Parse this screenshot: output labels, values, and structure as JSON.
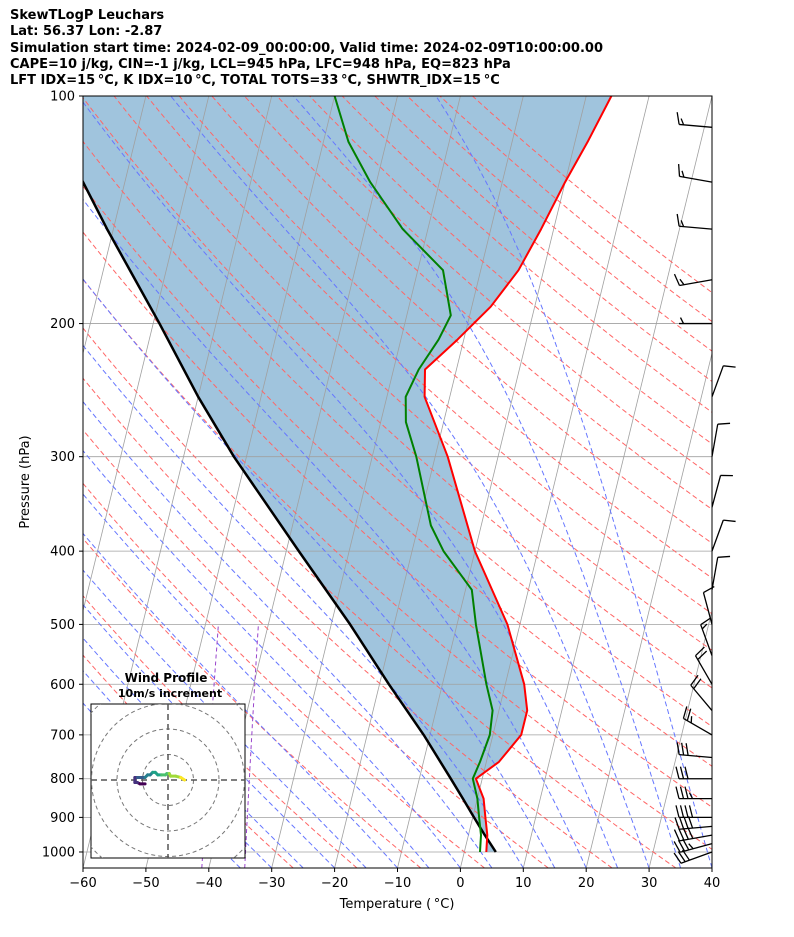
{
  "header": {
    "line1": "SkewTLogP Leuchars",
    "line2": "Lat: 56.37   Lon: -2.87",
    "line3": "Simulation start time: 2024-02-09_00:00:00, Valid time: 2024-02-09T10:00:00.00",
    "line4": "CAPE=10 j/kg, CIN=-1 j/kg, LCL=945 hPa, LFC=948 hPa, EQ=823 hPa",
    "line5": "LFT IDX=15 °C, K IDX=10 °C, TOTAL TOTS=33 °C, SHWTR_IDX=15 °C"
  },
  "chart_data": {
    "type": "line",
    "xlabel": "Temperature ( °C)",
    "ylabel": "Pressure (hPa)",
    "xlim": [
      -60,
      40
    ],
    "ylim": [
      1050,
      100
    ],
    "y_scale": "log",
    "x_ticks": [
      "−60",
      "−50",
      "−40",
      "−30",
      "−20",
      "−10",
      "0",
      "10",
      "20",
      "30",
      "40"
    ],
    "y_ticks": [
      "100",
      "200",
      "300",
      "400",
      "500",
      "600",
      "700",
      "800",
      "900",
      "1000"
    ],
    "grid": true,
    "colors": {
      "temperature": "#ff0000",
      "dewpoint": "#008000",
      "parcel": "#000000",
      "cape_fill": "#a0c4dd",
      "dry_adiabats": "#ff6666",
      "moist_adiabats": "#6677ff",
      "mixing_ratio": "#9944cc",
      "isotherms": "#a0a0a0"
    },
    "series": [
      {
        "key": "temperature",
        "points": [
          [
            1000,
            3.5
          ],
          [
            950,
            3
          ],
          [
            900,
            2
          ],
          [
            850,
            1
          ],
          [
            800,
            -1
          ],
          [
            760,
            2
          ],
          [
            700,
            4.5
          ],
          [
            650,
            4.5
          ],
          [
            600,
            3
          ],
          [
            500,
            -2
          ],
          [
            400,
            -10
          ],
          [
            300,
            -18
          ],
          [
            250,
            -24
          ],
          [
            230,
            -25
          ],
          [
            210,
            -21
          ],
          [
            190,
            -17
          ],
          [
            170,
            -14
          ],
          [
            150,
            -12
          ],
          [
            130,
            -10
          ],
          [
            115,
            -8
          ],
          [
            100,
            -6
          ]
        ]
      },
      {
        "key": "dewpoint",
        "points": [
          [
            1000,
            2.5
          ],
          [
            950,
            2
          ],
          [
            900,
            1
          ],
          [
            850,
            0
          ],
          [
            800,
            -1.5
          ],
          [
            760,
            -1
          ],
          [
            700,
            -0.5
          ],
          [
            650,
            -1
          ],
          [
            600,
            -3
          ],
          [
            500,
            -7
          ],
          [
            450,
            -9
          ],
          [
            400,
            -15
          ],
          [
            370,
            -18
          ],
          [
            300,
            -23
          ],
          [
            270,
            -26
          ],
          [
            250,
            -27
          ],
          [
            230,
            -26
          ],
          [
            210,
            -24
          ],
          [
            195,
            -23
          ],
          [
            170,
            -26
          ],
          [
            150,
            -34
          ],
          [
            130,
            -41
          ],
          [
            115,
            -46
          ],
          [
            100,
            -50
          ]
        ]
      },
      {
        "key": "parcel",
        "points": [
          [
            1000,
            5
          ],
          [
            950,
            2.6
          ],
          [
            900,
            0.2
          ],
          [
            850,
            -2.3
          ],
          [
            800,
            -5
          ],
          [
            700,
            -11
          ],
          [
            600,
            -18.5
          ],
          [
            500,
            -27
          ],
          [
            400,
            -38
          ],
          [
            300,
            -52
          ],
          [
            250,
            -60
          ],
          [
            200,
            -69
          ],
          [
            150,
            -81
          ],
          [
            100,
            -97
          ]
        ]
      }
    ],
    "wind_barbs": [
      {
        "p": 1000,
        "speed_kt": 30,
        "dir_deg": 250
      },
      {
        "p": 975,
        "speed_kt": 35,
        "dir_deg": 255
      },
      {
        "p": 950,
        "speed_kt": 40,
        "dir_deg": 260
      },
      {
        "p": 925,
        "speed_kt": 40,
        "dir_deg": 265
      },
      {
        "p": 900,
        "speed_kt": 40,
        "dir_deg": 270
      },
      {
        "p": 850,
        "speed_kt": 35,
        "dir_deg": 270
      },
      {
        "p": 800,
        "speed_kt": 30,
        "dir_deg": 270
      },
      {
        "p": 750,
        "speed_kt": 30,
        "dir_deg": 275
      },
      {
        "p": 700,
        "speed_kt": 25,
        "dir_deg": 300
      },
      {
        "p": 650,
        "speed_kt": 20,
        "dir_deg": 320
      },
      {
        "p": 600,
        "speed_kt": 20,
        "dir_deg": 330
      },
      {
        "p": 550,
        "speed_kt": 15,
        "dir_deg": 340
      },
      {
        "p": 500,
        "speed_kt": 10,
        "dir_deg": 345
      },
      {
        "p": 450,
        "speed_kt": 10,
        "dir_deg": 10
      },
      {
        "p": 400,
        "speed_kt": 10,
        "dir_deg": 20
      },
      {
        "p": 350,
        "speed_kt": 10,
        "dir_deg": 15
      },
      {
        "p": 300,
        "speed_kt": 10,
        "dir_deg": 10
      },
      {
        "p": 250,
        "speed_kt": 10,
        "dir_deg": 20
      },
      {
        "p": 200,
        "speed_kt": 5,
        "dir_deg": 270
      },
      {
        "p": 175,
        "speed_kt": 15,
        "dir_deg": 260
      },
      {
        "p": 150,
        "speed_kt": 15,
        "dir_deg": 275
      },
      {
        "p": 130,
        "speed_kt": 15,
        "dir_deg": 280
      },
      {
        "p": 110,
        "speed_kt": 15,
        "dir_deg": 275
      }
    ],
    "hodograph": {
      "title": "Wind Profile",
      "subtitle": "10m/s increment",
      "ring_step_ms": 10,
      "points_uv": [
        [
          6.5,
          0
        ],
        [
          5,
          1
        ],
        [
          3,
          1.5
        ],
        [
          1,
          1.5
        ],
        [
          0.5,
          2.5
        ],
        [
          -0.5,
          2.5
        ],
        [
          -1,
          2
        ],
        [
          -2.5,
          2
        ],
        [
          -4,
          2
        ],
        [
          -5,
          3
        ],
        [
          -6,
          3
        ],
        [
          -7,
          2
        ],
        [
          -8,
          2
        ],
        [
          -9,
          1
        ],
        [
          -10,
          1
        ],
        [
          -11,
          1
        ],
        [
          -12,
          1
        ],
        [
          -13,
          1
        ],
        [
          -13,
          -1
        ],
        [
          -12,
          -1
        ],
        [
          -11,
          -1.5
        ],
        [
          -10,
          -1.5
        ],
        [
          -9,
          -1.5
        ]
      ]
    }
  }
}
